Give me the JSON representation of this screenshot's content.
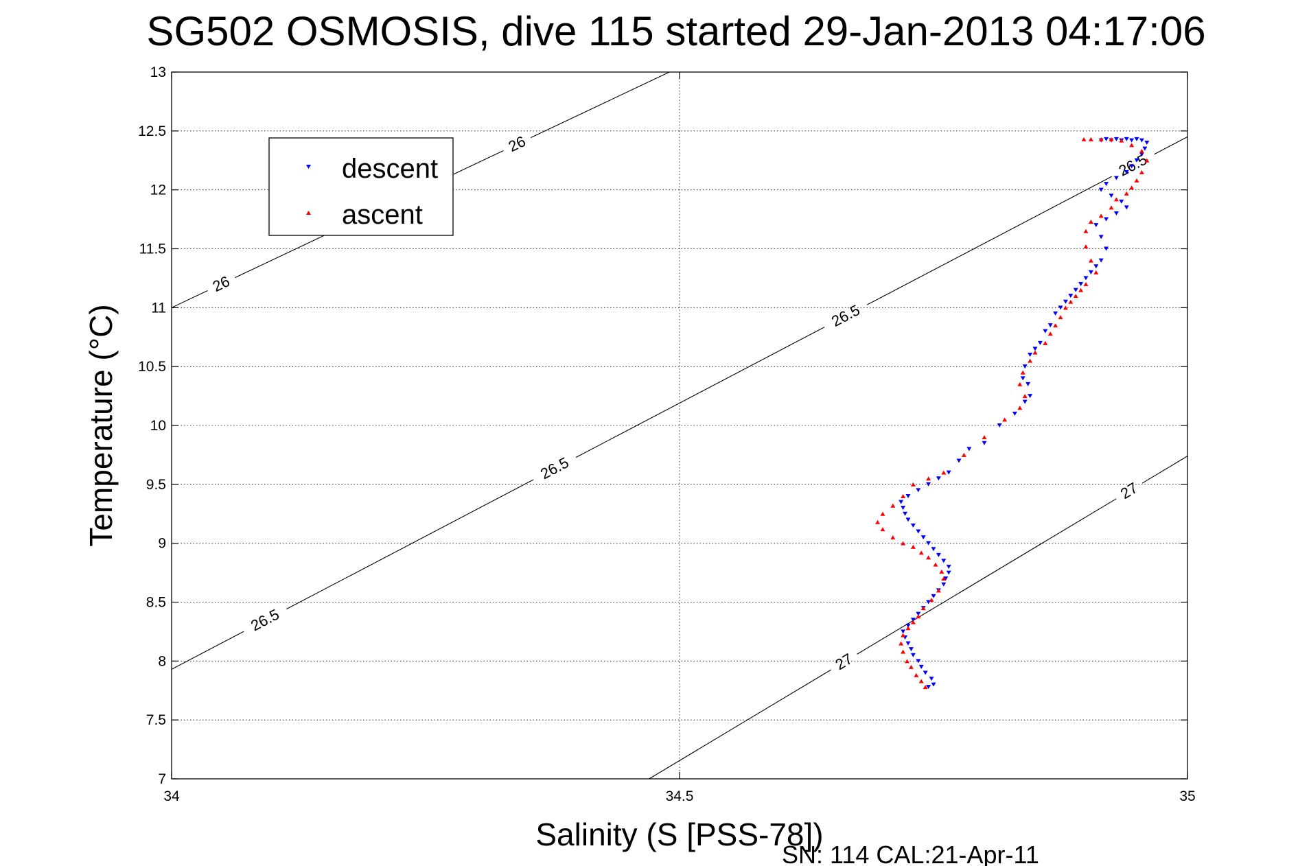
{
  "chart_data": {
    "type": "scatter",
    "title": "SG502 OSMOSIS, dive 115 started 29-Jan-2013 04:17:06",
    "xlabel": "Salinity (S [PSS-78])",
    "ylabel": "Temperature (°C)",
    "xlim": [
      34,
      35
    ],
    "ylim": [
      7,
      13
    ],
    "grid": true,
    "xticks": [
      34,
      34.5,
      35
    ],
    "xtick_labels": [
      "34",
      "34.5",
      "35"
    ],
    "yticks": [
      7,
      7.5,
      8,
      8.5,
      9,
      9.5,
      10,
      10.5,
      11,
      11.5,
      12,
      12.5,
      13
    ],
    "ytick_labels": [
      "7",
      "7.5",
      "8",
      "8.5",
      "9",
      "9.5",
      "10",
      "10.5",
      "11",
      "11.5",
      "12",
      "12.5",
      "13"
    ],
    "legend": {
      "location": "top-left",
      "entries": [
        "descent",
        "ascent"
      ]
    },
    "colors": {
      "descent": "#0000ff",
      "ascent": "#ff0000",
      "contour": "#000000",
      "grid": "#000000"
    },
    "density_contours": [
      {
        "level": "26",
        "points": [
          [
            34.0,
            11.0
          ],
          [
            34.49,
            13.0
          ]
        ],
        "labels": [
          {
            "x": 34.05,
            "y": 11.18
          },
          {
            "x": 34.34,
            "y": 12.39
          }
        ]
      },
      {
        "level": "26.5",
        "points": [
          [
            34.0,
            7.93
          ],
          [
            35.0,
            12.45
          ]
        ],
        "labels": [
          {
            "x": 34.09,
            "y": 8.38
          },
          {
            "x": 34.375,
            "y": 9.67
          },
          {
            "x": 34.66,
            "y": 10.99
          },
          {
            "x": 34.945,
            "y": 12.23
          }
        ]
      },
      {
        "level": "27",
        "points": [
          [
            34.47,
            7.0
          ],
          [
            35.0,
            9.74
          ]
        ],
        "labels": [
          {
            "x": 34.66,
            "y": 8.02
          },
          {
            "x": 34.945,
            "y": 9.41
          }
        ]
      }
    ],
    "series": [
      {
        "name": "descent",
        "marker": "triangle-down",
        "x": [
          34.745,
          34.75,
          34.748,
          34.742,
          34.738,
          34.735,
          34.73,
          34.728,
          34.725,
          34.722,
          34.72,
          34.725,
          34.73,
          34.735,
          34.74,
          34.745,
          34.75,
          34.755,
          34.76,
          34.762,
          34.765,
          34.765,
          34.76,
          34.755,
          34.75,
          34.745,
          34.74,
          34.735,
          34.73,
          34.725,
          34.722,
          34.72,
          34.718,
          34.725,
          34.735,
          34.745,
          34.755,
          34.765,
          34.775,
          34.785,
          34.8,
          34.815,
          34.83,
          34.84,
          34.845,
          34.843,
          34.838,
          34.84,
          34.845,
          34.85,
          34.855,
          34.86,
          34.865,
          34.87,
          34.875,
          34.88,
          34.885,
          34.89,
          34.895,
          34.9,
          34.905,
          34.91,
          34.915,
          34.92,
          34.915,
          34.91,
          34.92,
          34.93,
          34.94,
          34.935,
          34.925,
          34.915,
          34.92,
          34.93,
          34.94,
          34.945,
          34.95,
          34.955,
          34.958,
          34.96,
          34.955,
          34.945,
          34.935,
          34.925,
          34.915,
          34.92,
          34.93,
          34.94,
          34.95
        ],
        "y": [
          7.78,
          7.8,
          7.85,
          7.9,
          7.95,
          8.0,
          8.05,
          8.1,
          8.15,
          8.2,
          8.25,
          8.3,
          8.35,
          8.4,
          8.45,
          8.5,
          8.55,
          8.6,
          8.65,
          8.7,
          8.75,
          8.8,
          8.85,
          8.9,
          8.95,
          9.0,
          9.05,
          9.1,
          9.15,
          9.2,
          9.25,
          9.3,
          9.35,
          9.4,
          9.45,
          9.5,
          9.55,
          9.6,
          9.7,
          9.8,
          9.85,
          10.0,
          10.1,
          10.2,
          10.25,
          10.35,
          10.4,
          10.5,
          10.6,
          10.65,
          10.7,
          10.8,
          10.85,
          10.95,
          11.0,
          11.05,
          11.1,
          11.15,
          11.2,
          11.25,
          11.3,
          11.35,
          11.4,
          11.5,
          11.6,
          11.7,
          11.75,
          11.8,
          11.85,
          11.9,
          11.95,
          12.0,
          12.05,
          12.1,
          12.15,
          12.2,
          12.25,
          12.3,
          12.35,
          12.4,
          12.42,
          12.42,
          12.42,
          12.42,
          12.42,
          12.43,
          12.43,
          12.43,
          12.43
        ]
      },
      {
        "name": "ascent",
        "marker": "triangle-up",
        "x": [
          34.742,
          34.738,
          34.733,
          34.728,
          34.724,
          34.72,
          34.718,
          34.72,
          34.725,
          34.73,
          34.735,
          34.74,
          34.748,
          34.755,
          34.76,
          34.758,
          34.752,
          34.745,
          34.738,
          34.73,
          34.72,
          34.71,
          34.7,
          34.695,
          34.7,
          34.71,
          34.72,
          34.73,
          34.745,
          34.76,
          34.78,
          34.8,
          34.82,
          34.835,
          34.84,
          34.835,
          34.838,
          34.845,
          34.85,
          34.86,
          34.865,
          34.87,
          34.875,
          34.88,
          34.885,
          34.89,
          34.895,
          34.9,
          34.91,
          34.905,
          34.9,
          34.9,
          34.905,
          34.915,
          34.925,
          34.93,
          34.94,
          34.945,
          34.95,
          34.955,
          34.96,
          34.955,
          34.945,
          34.935,
          34.925,
          34.915,
          34.905,
          34.898
        ],
        "y": [
          7.78,
          7.83,
          7.88,
          7.95,
          8.0,
          8.08,
          8.15,
          8.22,
          8.28,
          8.33,
          8.38,
          8.45,
          8.52,
          8.6,
          8.7,
          8.76,
          8.82,
          8.88,
          8.92,
          8.97,
          9.0,
          9.05,
          9.12,
          9.18,
          9.25,
          9.32,
          9.4,
          9.5,
          9.55,
          9.6,
          9.75,
          9.9,
          10.05,
          10.15,
          10.25,
          10.35,
          10.45,
          10.55,
          10.62,
          10.7,
          10.78,
          10.85,
          10.92,
          11.0,
          11.05,
          11.1,
          11.15,
          11.2,
          11.3,
          11.4,
          11.52,
          11.65,
          11.73,
          11.78,
          11.85,
          11.92,
          11.97,
          12.02,
          12.08,
          12.15,
          12.25,
          12.33,
          12.38,
          12.42,
          12.43,
          12.43,
          12.43,
          12.43
        ]
      }
    ],
    "footer": "SN: 114  CAL:21-Apr-11"
  }
}
